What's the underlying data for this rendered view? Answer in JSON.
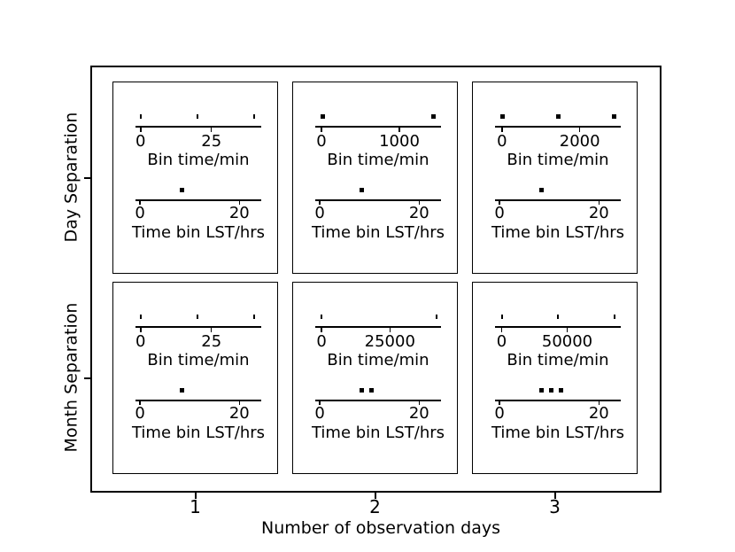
{
  "chart_data": {
    "type": "scatter",
    "description": "2x3 grid of subplots; each subplot holds two horizontal rug-marker axes",
    "xlabel": "Number of observation days",
    "x_tick_labels": [
      "1",
      "2",
      "3"
    ],
    "row_labels": [
      "Day Separation",
      "Month Separation"
    ],
    "marker_color": "#000000",
    "background_color": "#ffffff",
    "panels": [
      {
        "name": "day-1",
        "row": "Day Separation",
        "col": "1",
        "axes": [
          {
            "title": "Bin time/min",
            "xlim": [
              -1.8,
              42.6
            ],
            "ticks": [
              {
                "value": 0,
                "label": "0"
              },
              {
                "value": 25,
                "label": "25"
              }
            ],
            "markers": [
              0,
              20,
              40
            ],
            "marker_style": "tick"
          },
          {
            "title": "Time bin LST/hrs",
            "xlim": [
              -0.9,
              24.4
            ],
            "ticks": [
              {
                "value": 0,
                "label": "0"
              },
              {
                "value": 20,
                "label": "20"
              }
            ],
            "markers": [
              8.4
            ],
            "marker_style": "square"
          }
        ]
      },
      {
        "name": "day-2",
        "row": "Day Separation",
        "col": "2",
        "axes": [
          {
            "title": "Bin time/min",
            "xlim": [
              -80,
              1534
            ],
            "ticks": [
              {
                "value": 0,
                "label": "0"
              },
              {
                "value": 1000,
                "label": "1000"
              }
            ],
            "markers": [
              20,
              1440
            ],
            "marker_style": "square"
          },
          {
            "title": "Time bin LST/hrs",
            "xlim": [
              -0.9,
              24.4
            ],
            "ticks": [
              {
                "value": 0,
                "label": "0"
              },
              {
                "value": 20,
                "label": "20"
              }
            ],
            "markers": [
              8.4
            ],
            "marker_style": "square"
          }
        ]
      },
      {
        "name": "day-3",
        "row": "Day Separation",
        "col": "3",
        "axes": [
          {
            "title": "Bin time/min",
            "xlim": [
              -180,
              3056
            ],
            "ticks": [
              {
                "value": 0,
                "label": "0"
              },
              {
                "value": 2000,
                "label": "2000"
              }
            ],
            "markers": [
              20,
              1440,
              2880
            ],
            "marker_style": "square"
          },
          {
            "title": "Time bin LST/hrs",
            "xlim": [
              -0.9,
              24.4
            ],
            "ticks": [
              {
                "value": 0,
                "label": "0"
              },
              {
                "value": 20,
                "label": "20"
              }
            ],
            "markers": [
              8.4
            ],
            "marker_style": "square"
          }
        ]
      },
      {
        "name": "month-1",
        "row": "Month Separation",
        "col": "1",
        "axes": [
          {
            "title": "Bin time/min",
            "xlim": [
              -1.8,
              42.6
            ],
            "ticks": [
              {
                "value": 0,
                "label": "0"
              },
              {
                "value": 25,
                "label": "25"
              }
            ],
            "markers": [
              0,
              20,
              40
            ],
            "marker_style": "tick"
          },
          {
            "title": "Time bin LST/hrs",
            "xlim": [
              -0.9,
              24.4
            ],
            "ticks": [
              {
                "value": 0,
                "label": "0"
              },
              {
                "value": 20,
                "label": "20"
              }
            ],
            "markers": [
              8.4
            ],
            "marker_style": "square"
          }
        ]
      },
      {
        "name": "month-2",
        "row": "Month Separation",
        "col": "2",
        "axes": [
          {
            "title": "Bin time/min",
            "xlim": [
              -2300,
              43700
            ],
            "ticks": [
              {
                "value": 0,
                "label": "0"
              },
              {
                "value": 25000,
                "label": "25000"
              }
            ],
            "markers": [
              40,
              42000
            ],
            "marker_style": "tick"
          },
          {
            "title": "Time bin LST/hrs",
            "xlim": [
              -0.9,
              24.4
            ],
            "ticks": [
              {
                "value": 0,
                "label": "0"
              },
              {
                "value": 20,
                "label": "20"
              }
            ],
            "markers": [
              8.4,
              10.4
            ],
            "marker_style": "square"
          }
        ]
      },
      {
        "name": "month-3",
        "row": "Month Separation",
        "col": "3",
        "axes": [
          {
            "title": "Bin time/min",
            "xlim": [
              -5100,
              90900
            ],
            "ticks": [
              {
                "value": 0,
                "label": "0"
              },
              {
                "value": 50000,
                "label": "50000"
              }
            ],
            "markers": [
              40,
              43200,
              86400
            ],
            "marker_style": "tick"
          },
          {
            "title": "Time bin LST/hrs",
            "xlim": [
              -0.9,
              24.4
            ],
            "ticks": [
              {
                "value": 0,
                "label": "0"
              },
              {
                "value": 20,
                "label": "20"
              }
            ],
            "markers": [
              8.4,
              10.4,
              12.3
            ],
            "marker_style": "square"
          }
        ]
      }
    ]
  }
}
